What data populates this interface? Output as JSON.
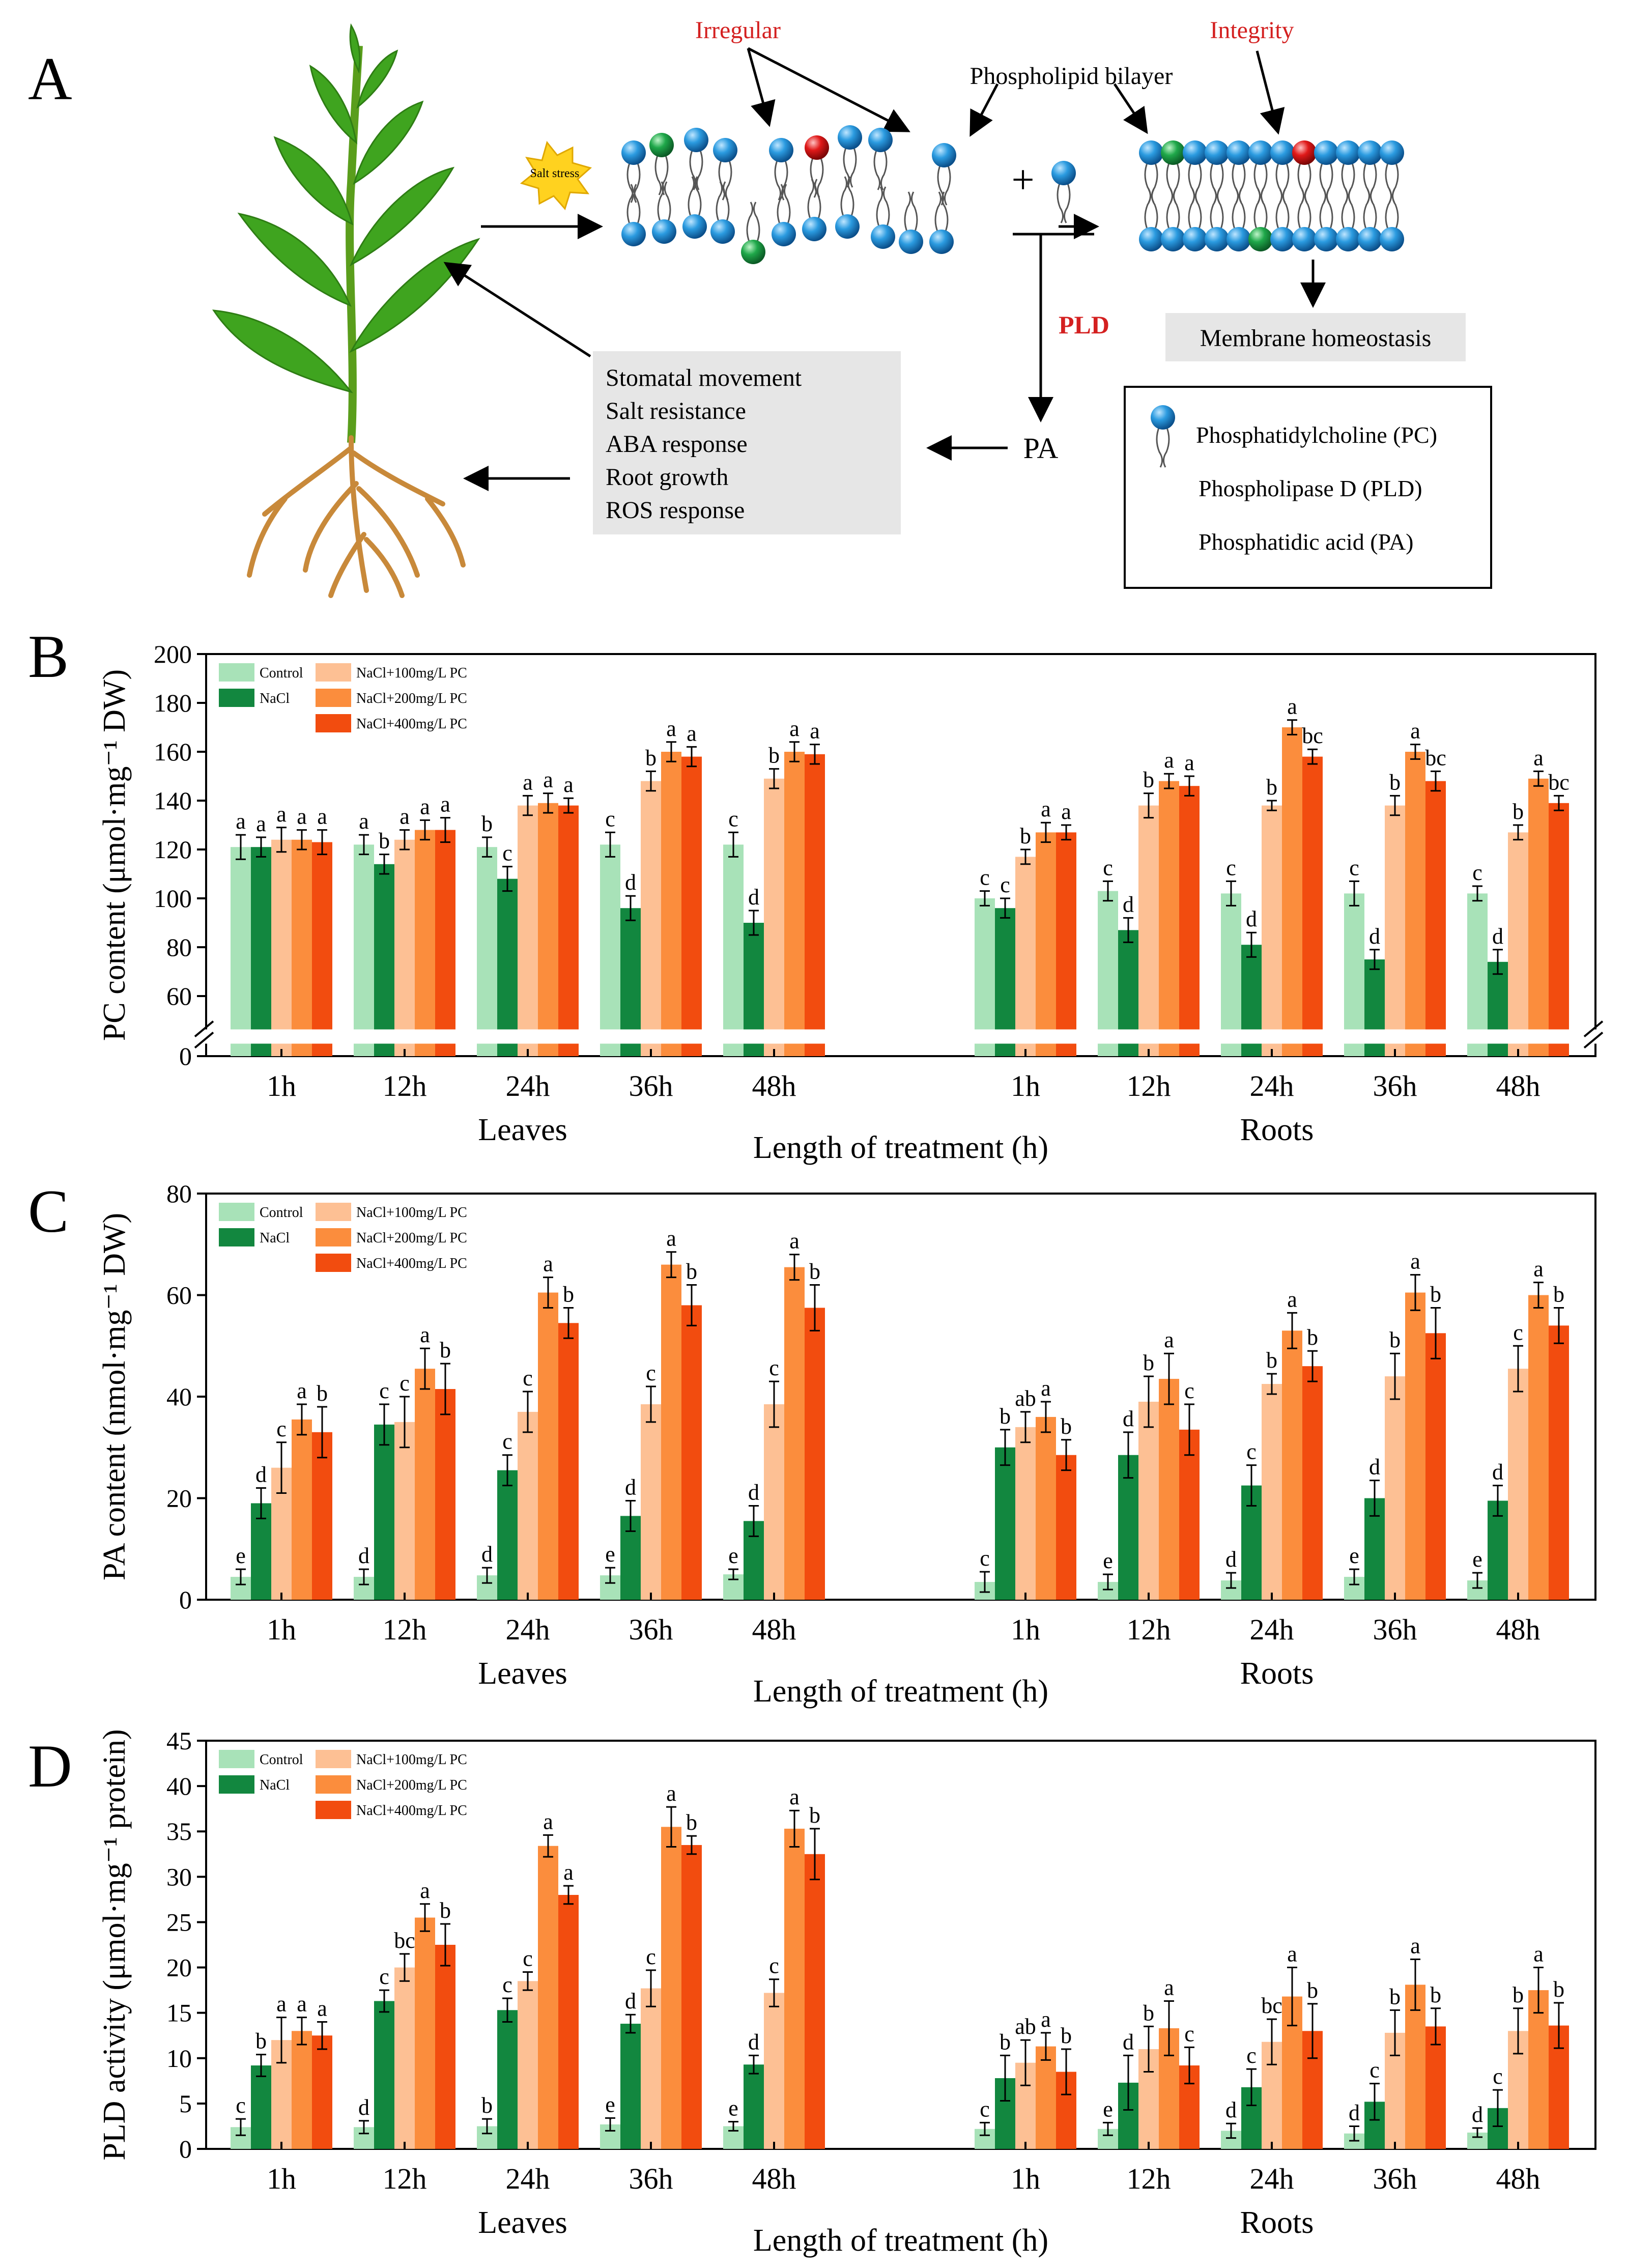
{
  "panel_labels": [
    "A",
    "B",
    "C",
    "D"
  ],
  "diagram": {
    "irregular": "Irregular",
    "integrity": "Integrity",
    "bilayer": "Phospholipid bilayer",
    "salt_stress": "Salt stress",
    "plus": "+",
    "pld": "PLD",
    "pa": "PA",
    "homeostasis": "Membrane homeostasis",
    "responses": [
      "Stomatal movement",
      "Salt resistance",
      "ABA response",
      "Root growth",
      "ROS response"
    ],
    "legend": [
      "Phosphatidylcholine (PC)",
      "Phospholipase D (PLD)",
      "Phosphatidic acid (PA)"
    ],
    "colors": {
      "lipid_head": "#1f8fd6",
      "green_lipid": "#1fa84a",
      "red_lipid": "#e01919",
      "accent_text": "#d42020",
      "box_fill": "#e6e6e6"
    }
  },
  "chart_data": [
    {
      "type": "bar",
      "panel": "B",
      "ylabel": "PC content (μmol·mg⁻¹ DW)",
      "xlabel": "Length of treatment (h)",
      "groups": [
        "Leaves",
        "Roots"
      ],
      "categories": [
        "1h",
        "12h",
        "24h",
        "36h",
        "48h"
      ],
      "ylim": [
        50,
        200
      ],
      "axis_break": true,
      "yticks": [
        60,
        80,
        100,
        120,
        140,
        160,
        180,
        200
      ],
      "extra_tick_label": "0",
      "series_colors": [
        "#a8e2b8",
        "#12873f",
        "#fdc094",
        "#fb8d3d",
        "#f24c0f"
      ],
      "series": [
        {
          "name": "Control",
          "leaves": [
            121,
            122,
            121,
            122,
            122
          ],
          "roots": [
            100,
            103,
            102,
            102,
            102
          ],
          "leaves_err": [
            5,
            4,
            4,
            5,
            5
          ],
          "roots_err": [
            3,
            4,
            5,
            5,
            3
          ],
          "leaves_lab": [
            "a",
            "a",
            "b",
            "c",
            "c"
          ],
          "roots_lab": [
            "c",
            "c",
            "c",
            "c",
            "c"
          ]
        },
        {
          "name": "NaCl",
          "leaves": [
            121,
            114,
            108,
            96,
            90
          ],
          "roots": [
            96,
            87,
            81,
            75,
            74
          ],
          "leaves_err": [
            4,
            4,
            5,
            5,
            5
          ],
          "roots_err": [
            4,
            5,
            5,
            4,
            5
          ],
          "leaves_lab": [
            "a",
            "b",
            "c",
            "d",
            "d"
          ],
          "roots_lab": [
            "c",
            "d",
            "d",
            "d",
            "d"
          ]
        },
        {
          "name": "NaCl+100mg/L PC",
          "leaves": [
            124,
            124,
            138,
            148,
            149
          ],
          "roots": [
            117,
            138,
            138,
            138,
            127
          ],
          "leaves_err": [
            5,
            4,
            4,
            4,
            4
          ],
          "roots_err": [
            3,
            5,
            2,
            4,
            3
          ],
          "leaves_lab": [
            "a",
            "a",
            "a",
            "b",
            "b"
          ],
          "roots_lab": [
            "b",
            "b",
            "b",
            "b",
            "b"
          ]
        },
        {
          "name": "NaCl+200mg/L PC",
          "leaves": [
            124,
            128,
            139,
            160,
            160
          ],
          "roots": [
            127,
            148,
            170,
            160,
            149
          ],
          "leaves_err": [
            4,
            4,
            4,
            4,
            4
          ],
          "roots_err": [
            4,
            3,
            3,
            3,
            3
          ],
          "leaves_lab": [
            "a",
            "a",
            "a",
            "a",
            "a"
          ],
          "roots_lab": [
            "a",
            "a",
            "a",
            "a",
            "a"
          ]
        },
        {
          "name": "NaCl+400mg/L PC",
          "leaves": [
            123,
            128,
            138,
            158,
            159
          ],
          "roots": [
            127,
            146,
            158,
            148,
            139
          ],
          "leaves_err": [
            5,
            5,
            3,
            4,
            4
          ],
          "roots_err": [
            3,
            4,
            3,
            4,
            3
          ],
          "leaves_lab": [
            "a",
            "a",
            "a",
            "a",
            "a"
          ],
          "roots_lab": [
            "a",
            "a",
            "bc",
            "bc",
            "bc"
          ]
        }
      ]
    },
    {
      "type": "bar",
      "panel": "C",
      "ylabel": "PA content (nmol·mg⁻¹ DW)",
      "xlabel": "Length of treatment (h)",
      "groups": [
        "Leaves",
        "Roots"
      ],
      "categories": [
        "1h",
        "12h",
        "24h",
        "36h",
        "48h"
      ],
      "ylim": [
        0,
        80
      ],
      "yticks": [
        0,
        20,
        40,
        60,
        80
      ],
      "series_colors": [
        "#a8e2b8",
        "#12873f",
        "#fdc094",
        "#fb8d3d",
        "#f24c0f"
      ],
      "series": [
        {
          "name": "Control",
          "leaves": [
            4.5,
            4.5,
            4.8,
            4.8,
            5
          ],
          "roots": [
            3.5,
            3.5,
            3.8,
            4.5,
            3.8
          ],
          "leaves_err": [
            1.5,
            1.5,
            1.5,
            1.5,
            1
          ],
          "roots_err": [
            2,
            1.5,
            1.5,
            1.5,
            1.5
          ],
          "leaves_lab": [
            "e",
            "d",
            "d",
            "e",
            "e"
          ],
          "roots_lab": [
            "c",
            "e",
            "d",
            "e",
            "e"
          ]
        },
        {
          "name": "NaCl",
          "leaves": [
            19,
            34.5,
            25.5,
            16.5,
            15.5
          ],
          "roots": [
            30,
            28.5,
            22.5,
            20,
            19.5
          ],
          "leaves_err": [
            3,
            4,
            3,
            3,
            3
          ],
          "roots_err": [
            3.5,
            4.5,
            4,
            3.5,
            3
          ],
          "leaves_lab": [
            "d",
            "c",
            "c",
            "d",
            "d"
          ],
          "roots_lab": [
            "b",
            "d",
            "c",
            "d",
            "d"
          ]
        },
        {
          "name": "NaCl+100mg/L PC",
          "leaves": [
            26,
            35,
            37,
            38.5,
            38.5
          ],
          "roots": [
            34,
            39,
            42.5,
            44,
            45.5
          ],
          "leaves_err": [
            5,
            5,
            4,
            3.5,
            4.5
          ],
          "roots_err": [
            3,
            5,
            2,
            4.5,
            4.5
          ],
          "leaves_lab": [
            "c",
            "c",
            "c",
            "c",
            "c"
          ],
          "roots_lab": [
            "ab",
            "b",
            "b",
            "b",
            "c"
          ]
        },
        {
          "name": "NaCl+200mg/L PC",
          "leaves": [
            35.5,
            45.5,
            60.5,
            66,
            65.5
          ],
          "roots": [
            36,
            43.5,
            53,
            60.5,
            60
          ],
          "leaves_err": [
            3,
            4,
            3,
            2.5,
            2.5
          ],
          "roots_err": [
            3,
            5,
            3.5,
            3.5,
            2.5
          ],
          "leaves_lab": [
            "a",
            "a",
            "a",
            "a",
            "a"
          ],
          "roots_lab": [
            "a",
            "a",
            "a",
            "a",
            "a"
          ]
        },
        {
          "name": "NaCl+400mg/L PC",
          "leaves": [
            33,
            41.5,
            54.5,
            58,
            57.5
          ],
          "roots": [
            28.5,
            33.5,
            46,
            52.5,
            54
          ],
          "leaves_err": [
            5,
            5,
            3,
            4,
            4.5
          ],
          "roots_err": [
            3,
            5,
            3,
            5,
            3.5
          ],
          "leaves_lab": [
            "b",
            "b",
            "b",
            "b",
            "b"
          ],
          "roots_lab": [
            "b",
            "c",
            "b",
            "b",
            "b"
          ]
        }
      ]
    },
    {
      "type": "bar",
      "panel": "D",
      "ylabel": "PLD activity (μmol·mg⁻¹ protein)",
      "xlabel": "Length of treatment (h)",
      "groups": [
        "Leaves",
        "Roots"
      ],
      "categories": [
        "1h",
        "12h",
        "24h",
        "36h",
        "48h"
      ],
      "ylim": [
        0,
        45
      ],
      "yticks": [
        0,
        5,
        10,
        15,
        20,
        25,
        30,
        35,
        40,
        45
      ],
      "series_colors": [
        "#a8e2b8",
        "#12873f",
        "#fdc094",
        "#fb8d3d",
        "#f24c0f"
      ],
      "series": [
        {
          "name": "Control",
          "leaves": [
            2.4,
            2.4,
            2.5,
            2.7,
            2.5
          ],
          "roots": [
            2.2,
            2.2,
            2,
            1.7,
            1.8
          ],
          "leaves_err": [
            0.9,
            0.7,
            0.8,
            0.7,
            0.5
          ],
          "roots_err": [
            0.7,
            0.7,
            0.8,
            0.8,
            0.5
          ],
          "leaves_lab": [
            "c",
            "d",
            "b",
            "e",
            "e"
          ],
          "roots_lab": [
            "c",
            "e",
            "d",
            "d",
            "d"
          ]
        },
        {
          "name": "NaCl",
          "leaves": [
            9.2,
            16.3,
            15.3,
            13.8,
            9.3
          ],
          "roots": [
            7.8,
            7.3,
            6.8,
            5.2,
            4.5
          ],
          "leaves_err": [
            1.2,
            1.2,
            1.3,
            1,
            1
          ],
          "roots_err": [
            2.5,
            3,
            2,
            2,
            2
          ],
          "leaves_lab": [
            "b",
            "c",
            "c",
            "d",
            "d"
          ],
          "roots_lab": [
            "b",
            "d",
            "c",
            "c",
            "c"
          ]
        },
        {
          "name": "NaCl+100mg/L PC",
          "leaves": [
            12,
            20,
            18.5,
            17.7,
            17.2
          ],
          "roots": [
            9.5,
            11,
            11.8,
            12.8,
            13
          ],
          "leaves_err": [
            2.5,
            1.5,
            1,
            2,
            1.5
          ],
          "roots_err": [
            2.5,
            2.5,
            2.5,
            2.5,
            2.5
          ],
          "leaves_lab": [
            "a",
            "bc",
            "c",
            "c",
            "c"
          ],
          "roots_lab": [
            "ab",
            "b",
            "bc",
            "b",
            "b"
          ]
        },
        {
          "name": "NaCl+200mg/L PC",
          "leaves": [
            13,
            25.5,
            33.4,
            35.5,
            35.3
          ],
          "roots": [
            11.3,
            13.3,
            16.8,
            18.1,
            17.5
          ],
          "leaves_err": [
            1.5,
            1.5,
            1.2,
            2.2,
            2
          ],
          "roots_err": [
            1.5,
            3,
            3.2,
            2.8,
            2.5
          ],
          "leaves_lab": [
            "a",
            "a",
            "a",
            "a",
            "a"
          ],
          "roots_lab": [
            "a",
            "a",
            "a",
            "a",
            "a"
          ]
        },
        {
          "name": "NaCl+400mg/L PC",
          "leaves": [
            12.5,
            22.5,
            28,
            33.5,
            32.5
          ],
          "roots": [
            8.5,
            9.2,
            13,
            13.5,
            13.6
          ],
          "leaves_err": [
            1.5,
            2.3,
            1,
            1,
            2.8
          ],
          "roots_err": [
            2.5,
            2,
            3,
            2,
            2.5
          ],
          "leaves_lab": [
            "a",
            "b",
            "a",
            "b",
            "b"
          ],
          "roots_lab": [
            "b",
            "c",
            "b",
            "b",
            "b"
          ]
        }
      ]
    }
  ]
}
